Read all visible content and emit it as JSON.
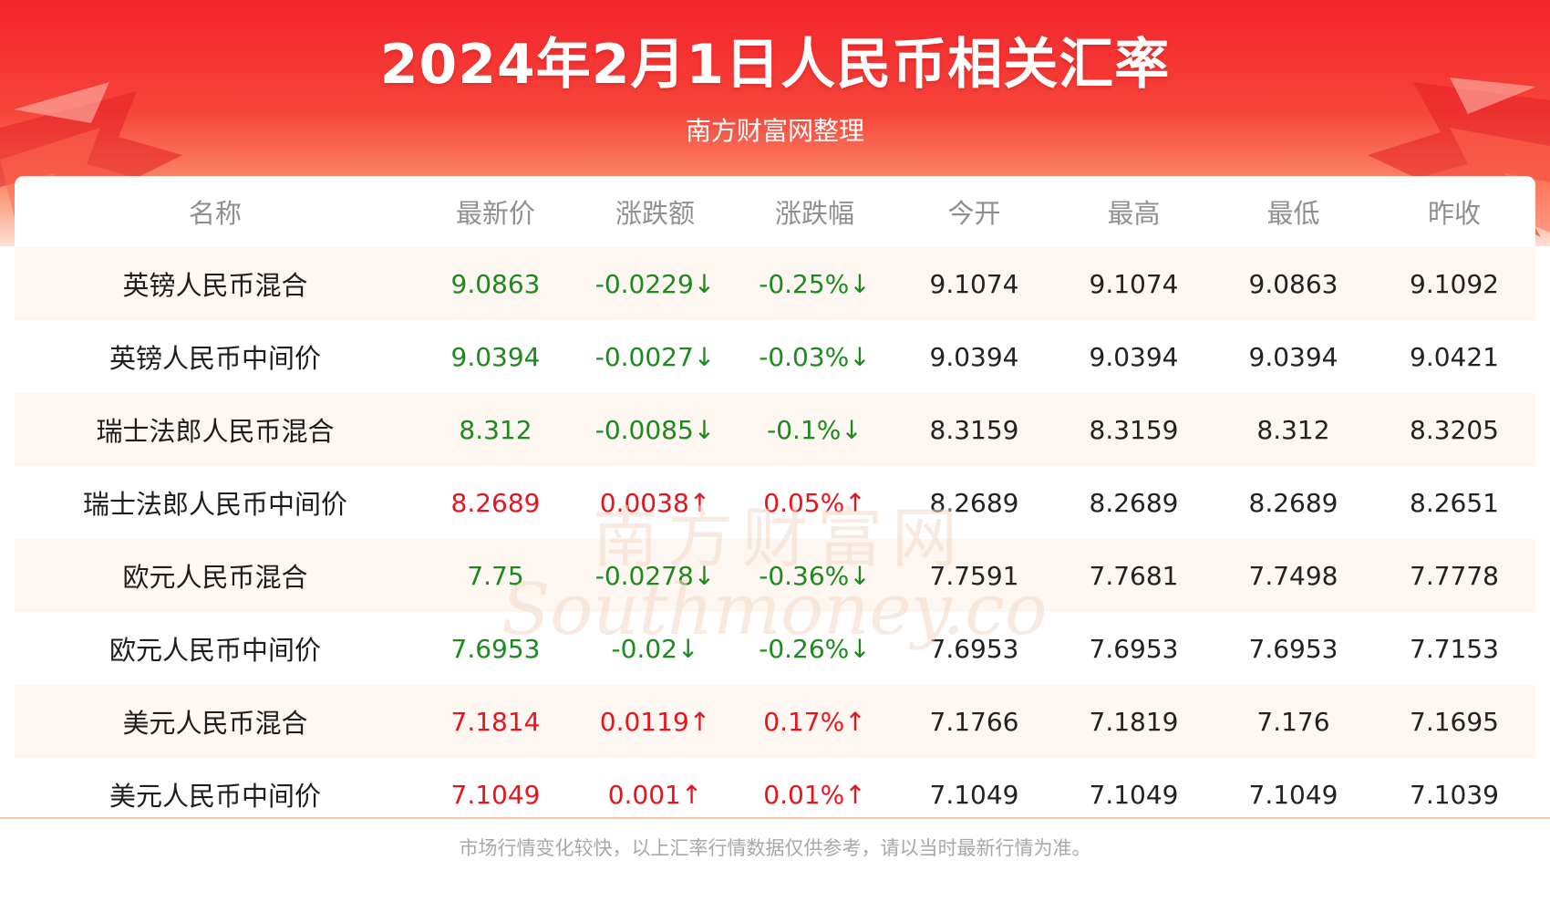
{
  "header": {
    "title": "2024年2月1日人民币相关汇率",
    "subtitle": "南方财富网整理"
  },
  "watermark": {
    "line1": "南方财富网",
    "line2": "Southmoney.com"
  },
  "table": {
    "columns": [
      "名称",
      "最新价",
      "涨跌额",
      "涨跌幅",
      "今开",
      "最高",
      "最低",
      "昨收"
    ],
    "rows": [
      {
        "name": "英镑人民币混合",
        "latest": "9.0863",
        "change": "-0.0229↓",
        "pct": "-0.25%↓",
        "open": "9.1074",
        "high": "9.1074",
        "low": "9.0863",
        "prev": "9.1092",
        "direction": "down"
      },
      {
        "name": "英镑人民币中间价",
        "latest": "9.0394",
        "change": "-0.0027↓",
        "pct": "-0.03%↓",
        "open": "9.0394",
        "high": "9.0394",
        "low": "9.0394",
        "prev": "9.0421",
        "direction": "down"
      },
      {
        "name": "瑞士法郎人民币混合",
        "latest": "8.312",
        "change": "-0.0085↓",
        "pct": "-0.1%↓",
        "open": "8.3159",
        "high": "8.3159",
        "low": "8.312",
        "prev": "8.3205",
        "direction": "down"
      },
      {
        "name": "瑞士法郎人民币中间价",
        "latest": "8.2689",
        "change": "0.0038↑",
        "pct": "0.05%↑",
        "open": "8.2689",
        "high": "8.2689",
        "low": "8.2689",
        "prev": "8.2651",
        "direction": "up"
      },
      {
        "name": "欧元人民币混合",
        "latest": "7.75",
        "change": "-0.0278↓",
        "pct": "-0.36%↓",
        "open": "7.7591",
        "high": "7.7681",
        "low": "7.7498",
        "prev": "7.7778",
        "direction": "down"
      },
      {
        "name": "欧元人民币中间价",
        "latest": "7.6953",
        "change": "-0.02↓",
        "pct": "-0.26%↓",
        "open": "7.6953",
        "high": "7.6953",
        "low": "7.6953",
        "prev": "7.7153",
        "direction": "down"
      },
      {
        "name": "美元人民币混合",
        "latest": "7.1814",
        "change": "0.0119↑",
        "pct": "0.17%↑",
        "open": "7.1766",
        "high": "7.1819",
        "low": "7.176",
        "prev": "7.1695",
        "direction": "up"
      },
      {
        "name": "美元人民币中间价",
        "latest": "7.1049",
        "change": "0.001↑",
        "pct": "0.01%↑",
        "open": "7.1049",
        "high": "7.1049",
        "low": "7.1049",
        "prev": "7.1039",
        "direction": "up"
      }
    ]
  },
  "footer": {
    "note": "市场行情变化较快，以上汇率行情数据仅供参考，请以当时最新行情为准。"
  },
  "colors": {
    "header_red": "#f3242b",
    "down_green": "#1c8a1c",
    "up_red": "#e8141d",
    "row_stripe": "#fef6f1"
  }
}
